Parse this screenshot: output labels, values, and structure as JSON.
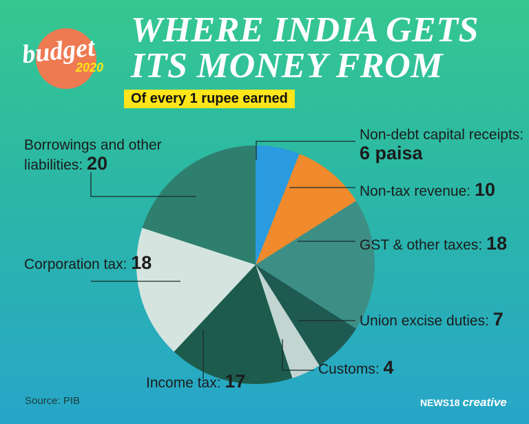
{
  "chart_data": {
    "type": "pie",
    "title_lines": [
      "WHERE INDIA GETS",
      "ITS MONEY FROM"
    ],
    "subtitle": "Of every 1 rupee earned",
    "logo": {
      "word": "budget",
      "year": "2020"
    },
    "categories": [
      "Non-debt capital receipts:",
      "Non-tax revenue:",
      "GST & other taxes:",
      "Union excise duties:",
      "Customs:",
      "Income tax:",
      "Corporation tax:",
      "Borrowings and other liabilities:"
    ],
    "values": [
      6,
      10,
      18,
      7,
      4,
      17,
      18,
      20
    ],
    "value_labels": [
      "6 paisa",
      "10",
      "18",
      "7",
      "4",
      "17",
      "18",
      "20"
    ],
    "colors": [
      "#2b9be0",
      "#f08a2c",
      "#3d8f86",
      "#1f5a52",
      "#c3d5d1",
      "#1d5c4c",
      "#d6e4e0",
      "#2e7f6e"
    ],
    "source": "Source: PIB",
    "credit": {
      "brand": "NEWS18",
      "label": "creative"
    }
  }
}
